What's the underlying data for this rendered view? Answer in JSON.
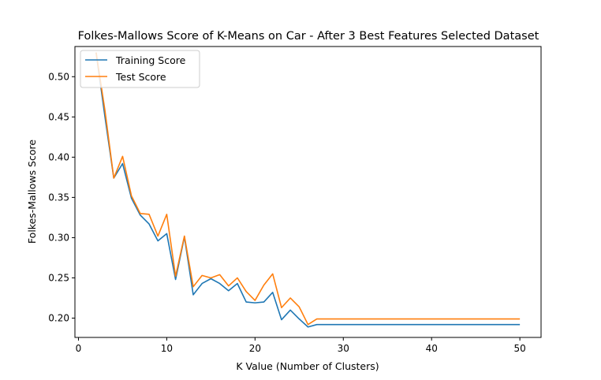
{
  "chart_data": {
    "type": "line",
    "title": "Folkes-Mallows Score of K-Means on Car - After 3 Best Features Selected Dataset",
    "xlabel": "K Value (Number of Clusters)",
    "ylabel": "Folkes-Mallows Score",
    "xlim": [
      -0.4,
      52.4
    ],
    "ylim": [
      0.176,
      0.5375
    ],
    "xticks": [
      0,
      10,
      20,
      30,
      40,
      50
    ],
    "yticks": [
      0.2,
      0.25,
      0.3,
      0.35,
      0.4,
      0.45,
      0.5
    ],
    "xtick_labels": [
      "0",
      "10",
      "20",
      "30",
      "40",
      "50"
    ],
    "ytick_labels": [
      "0.20",
      "0.25",
      "0.30",
      "0.35",
      "0.40",
      "0.45",
      "0.50"
    ],
    "grid": false,
    "legend": "upper-left",
    "x": [
      2,
      3,
      4,
      5,
      6,
      7,
      8,
      9,
      10,
      11,
      12,
      13,
      14,
      15,
      16,
      17,
      18,
      19,
      20,
      21,
      22,
      23,
      24,
      25,
      26,
      27,
      28,
      29,
      30,
      31,
      32,
      33,
      34,
      35,
      36,
      37,
      38,
      39,
      40,
      41,
      42,
      43,
      44,
      45,
      46,
      47,
      48,
      49,
      50
    ],
    "series": [
      {
        "name": "Training Score",
        "color": "#1f77b4",
        "values": [
          0.53,
          0.45,
          0.374,
          0.392,
          0.349,
          0.328,
          0.317,
          0.296,
          0.305,
          0.248,
          0.301,
          0.229,
          0.243,
          0.249,
          0.243,
          0.234,
          0.243,
          0.22,
          0.219,
          0.22,
          0.232,
          0.198,
          0.21,
          0.199,
          0.189,
          0.192,
          0.192,
          0.192,
          0.192,
          0.192,
          0.192,
          0.192,
          0.192,
          0.192,
          0.192,
          0.192,
          0.192,
          0.192,
          0.192,
          0.192,
          0.192,
          0.192,
          0.192,
          0.192,
          0.192,
          0.192,
          0.192,
          0.192,
          0.192
        ]
      },
      {
        "name": "Test Score",
        "color": "#ff7f0e",
        "values": [
          0.53,
          0.458,
          0.374,
          0.401,
          0.352,
          0.33,
          0.329,
          0.302,
          0.329,
          0.252,
          0.302,
          0.239,
          0.253,
          0.25,
          0.254,
          0.24,
          0.25,
          0.233,
          0.222,
          0.241,
          0.255,
          0.213,
          0.225,
          0.214,
          0.192,
          0.199,
          0.199,
          0.199,
          0.199,
          0.199,
          0.199,
          0.199,
          0.199,
          0.199,
          0.199,
          0.199,
          0.199,
          0.199,
          0.199,
          0.199,
          0.199,
          0.199,
          0.199,
          0.199,
          0.199,
          0.199,
          0.199,
          0.199,
          0.199
        ]
      }
    ]
  }
}
